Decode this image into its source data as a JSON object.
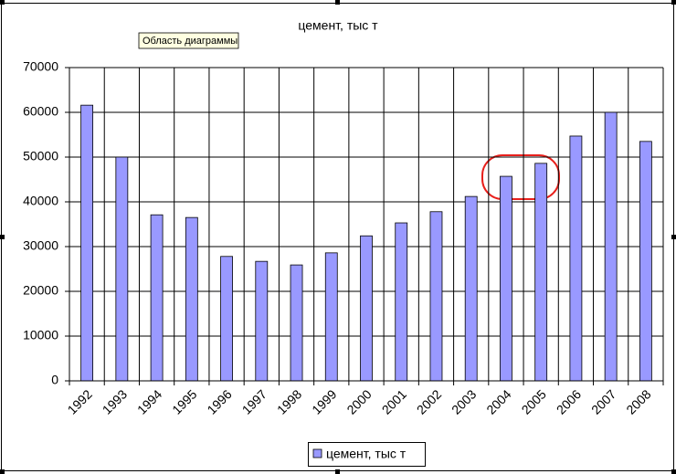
{
  "tooltip": "Область диаграммы",
  "chart_data": {
    "type": "bar",
    "title": "цемент, тыс т",
    "categories": [
      "1992",
      "1993",
      "1994",
      "1995",
      "1996",
      "1997",
      "1998",
      "1999",
      "2000",
      "2001",
      "2002",
      "2003",
      "2004",
      "2005",
      "2006",
      "2007",
      "2008"
    ],
    "series": [
      {
        "name": "цемент, тыс т",
        "color": "#9999ff",
        "values": [
          61600,
          50000,
          37100,
          36500,
          27800,
          26700,
          25900,
          28600,
          32400,
          35300,
          37800,
          41200,
          45700,
          48600,
          54700,
          60000,
          53500
        ]
      }
    ],
    "ylim": [
      0,
      70000
    ],
    "yticks": [
      0,
      10000,
      20000,
      30000,
      40000,
      50000,
      60000,
      70000
    ],
    "grid": true,
    "legend": "bottom"
  }
}
